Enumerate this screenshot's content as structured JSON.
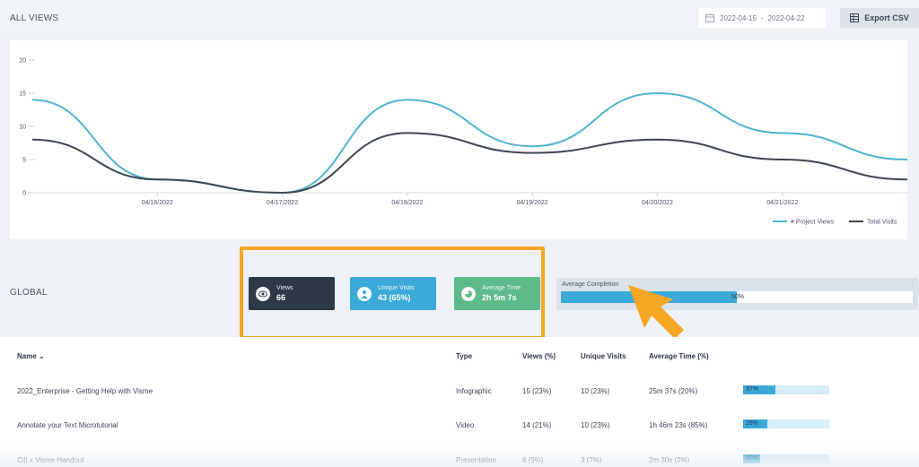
{
  "header": {
    "title": "ALL VIEWS",
    "date_from": "2022-04-15",
    "date_sep": "-",
    "date_to": "2022-04-22",
    "export_label": "Export CSV"
  },
  "chart_data": {
    "type": "line",
    "x": [
      "04/15/2022",
      "04/16/2022",
      "04/17/2022",
      "04/18/2022",
      "04/19/2022",
      "04/20/2022",
      "04/21/2022",
      "04/22/2022"
    ],
    "x_tick_labels": [
      "04/16/2022",
      "04/17/2022",
      "04/18/2022",
      "04/19/2022",
      "04/20/2022",
      "04/21/2022"
    ],
    "y_ticks": [
      0,
      5,
      10,
      15,
      20
    ],
    "ylim": [
      0,
      20
    ],
    "series": [
      {
        "name": "# Project Views",
        "color": "#4fb3d1",
        "values": [
          14,
          2,
          0,
          14,
          7,
          15,
          9,
          5
        ]
      },
      {
        "name": "Total Visits",
        "color": "#3d4650",
        "values": [
          8,
          2,
          0,
          9,
          6,
          8,
          5,
          2
        ]
      }
    ],
    "legend_position": "bottom-right",
    "grid": false
  },
  "global": {
    "label": "GLOBAL",
    "views_label": "Views",
    "views_value": "66",
    "unique_label": "Unique Visits",
    "unique_value": "43 (65%)",
    "time_label": "Average Time",
    "time_value": "2h 5m 7s",
    "completion_label": "Average Completion",
    "completion_pct_text": "50%",
    "completion_fraction": 0.5
  },
  "table": {
    "headers": {
      "name": "Name",
      "type": "Type",
      "views": "Views (%)",
      "unique": "Unique Visits",
      "avg_time": "Average Time (%)"
    },
    "rows": [
      {
        "name": "2022_Enterprise - Getting Help with Visme",
        "type": "Infographic",
        "views": "15 (23%)",
        "unique": "10 (23%)",
        "avg_time": "25m 37s (20%)",
        "completion": "37%",
        "completion_fraction": 0.37
      },
      {
        "name": "Annotate your Text Microtutorial",
        "type": "Video",
        "views": "14 (21%)",
        "unique": "10 (23%)",
        "avg_time": "1h 46m 23s (85%)",
        "completion": "28%",
        "completion_fraction": 0.28
      },
      {
        "name": "Citi x Visme Handout",
        "type": "Presentation",
        "views": "6 (9%)",
        "unique": "3 (7%)",
        "avg_time": "2m 30s (2%)",
        "completion": "20%",
        "completion_fraction": 0.2
      }
    ]
  },
  "colors": {
    "accent": "#3baad9",
    "highlight": "#f5a623",
    "dark_card": "#2c3946",
    "green_card": "#5dbb8a"
  }
}
